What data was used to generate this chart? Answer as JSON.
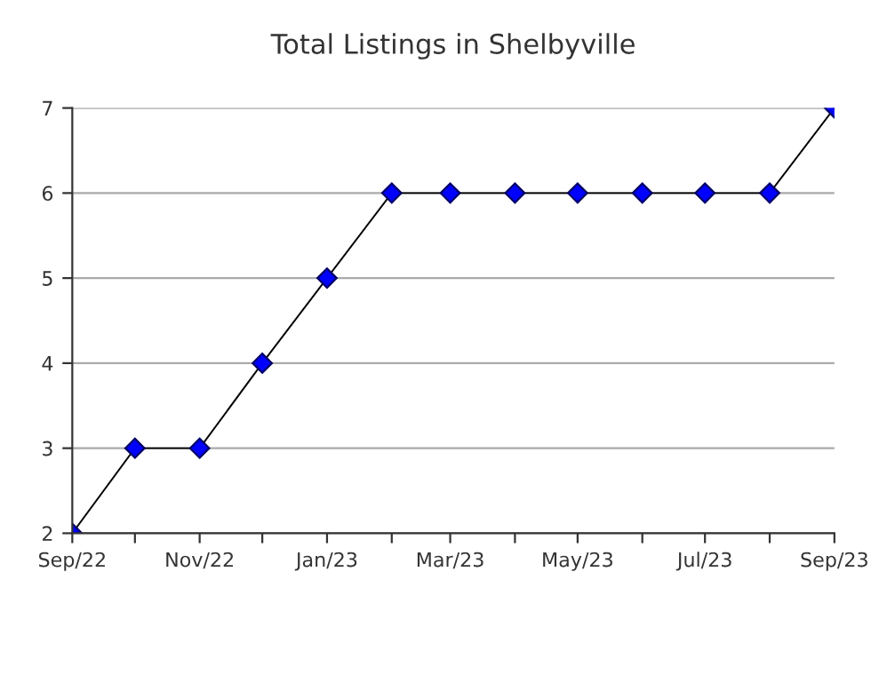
{
  "chart_data": {
    "type": "line",
    "title": "Total Listings in Shelbyville",
    "x": [
      "2022-09",
      "2022-10",
      "2022-11",
      "2022-12",
      "2023-01",
      "2023-02",
      "2023-03",
      "2023-04",
      "2023-05",
      "2023-06",
      "2023-07",
      "2023-08",
      "2023-09"
    ],
    "series": [
      {
        "color": "#0000ff",
        "values": [
          2,
          3,
          3,
          4,
          5,
          6,
          6,
          6,
          6,
          6,
          6,
          6,
          7
        ]
      }
    ],
    "xlim": [
      "2022-09",
      "2023-09"
    ],
    "xticks": [
      {
        "value": "2022-09",
        "label": "Sep/22"
      },
      {
        "value": "2022-10",
        "label": null
      },
      {
        "value": "2022-11",
        "label": "Nov/22"
      },
      {
        "value": "2022-12",
        "label": null
      },
      {
        "value": "2023-01",
        "label": "Jan/23"
      },
      {
        "value": "2023-02",
        "label": null
      },
      {
        "value": "2023-03",
        "label": "Mar/23"
      },
      {
        "value": "2023-04",
        "label": null
      },
      {
        "value": "2023-05",
        "label": "May/23"
      },
      {
        "value": "2023-06",
        "label": null
      },
      {
        "value": "2023-07",
        "label": "Jul/23"
      },
      {
        "value": "2023-08",
        "label": null
      },
      {
        "value": "2023-09",
        "label": "Sep/23"
      }
    ],
    "ylim": [
      2,
      7
    ],
    "yticks": [
      2,
      3,
      4,
      5,
      6,
      7
    ],
    "grid": "y",
    "marker": "diamond",
    "line_style": "solid",
    "legend": false
  }
}
